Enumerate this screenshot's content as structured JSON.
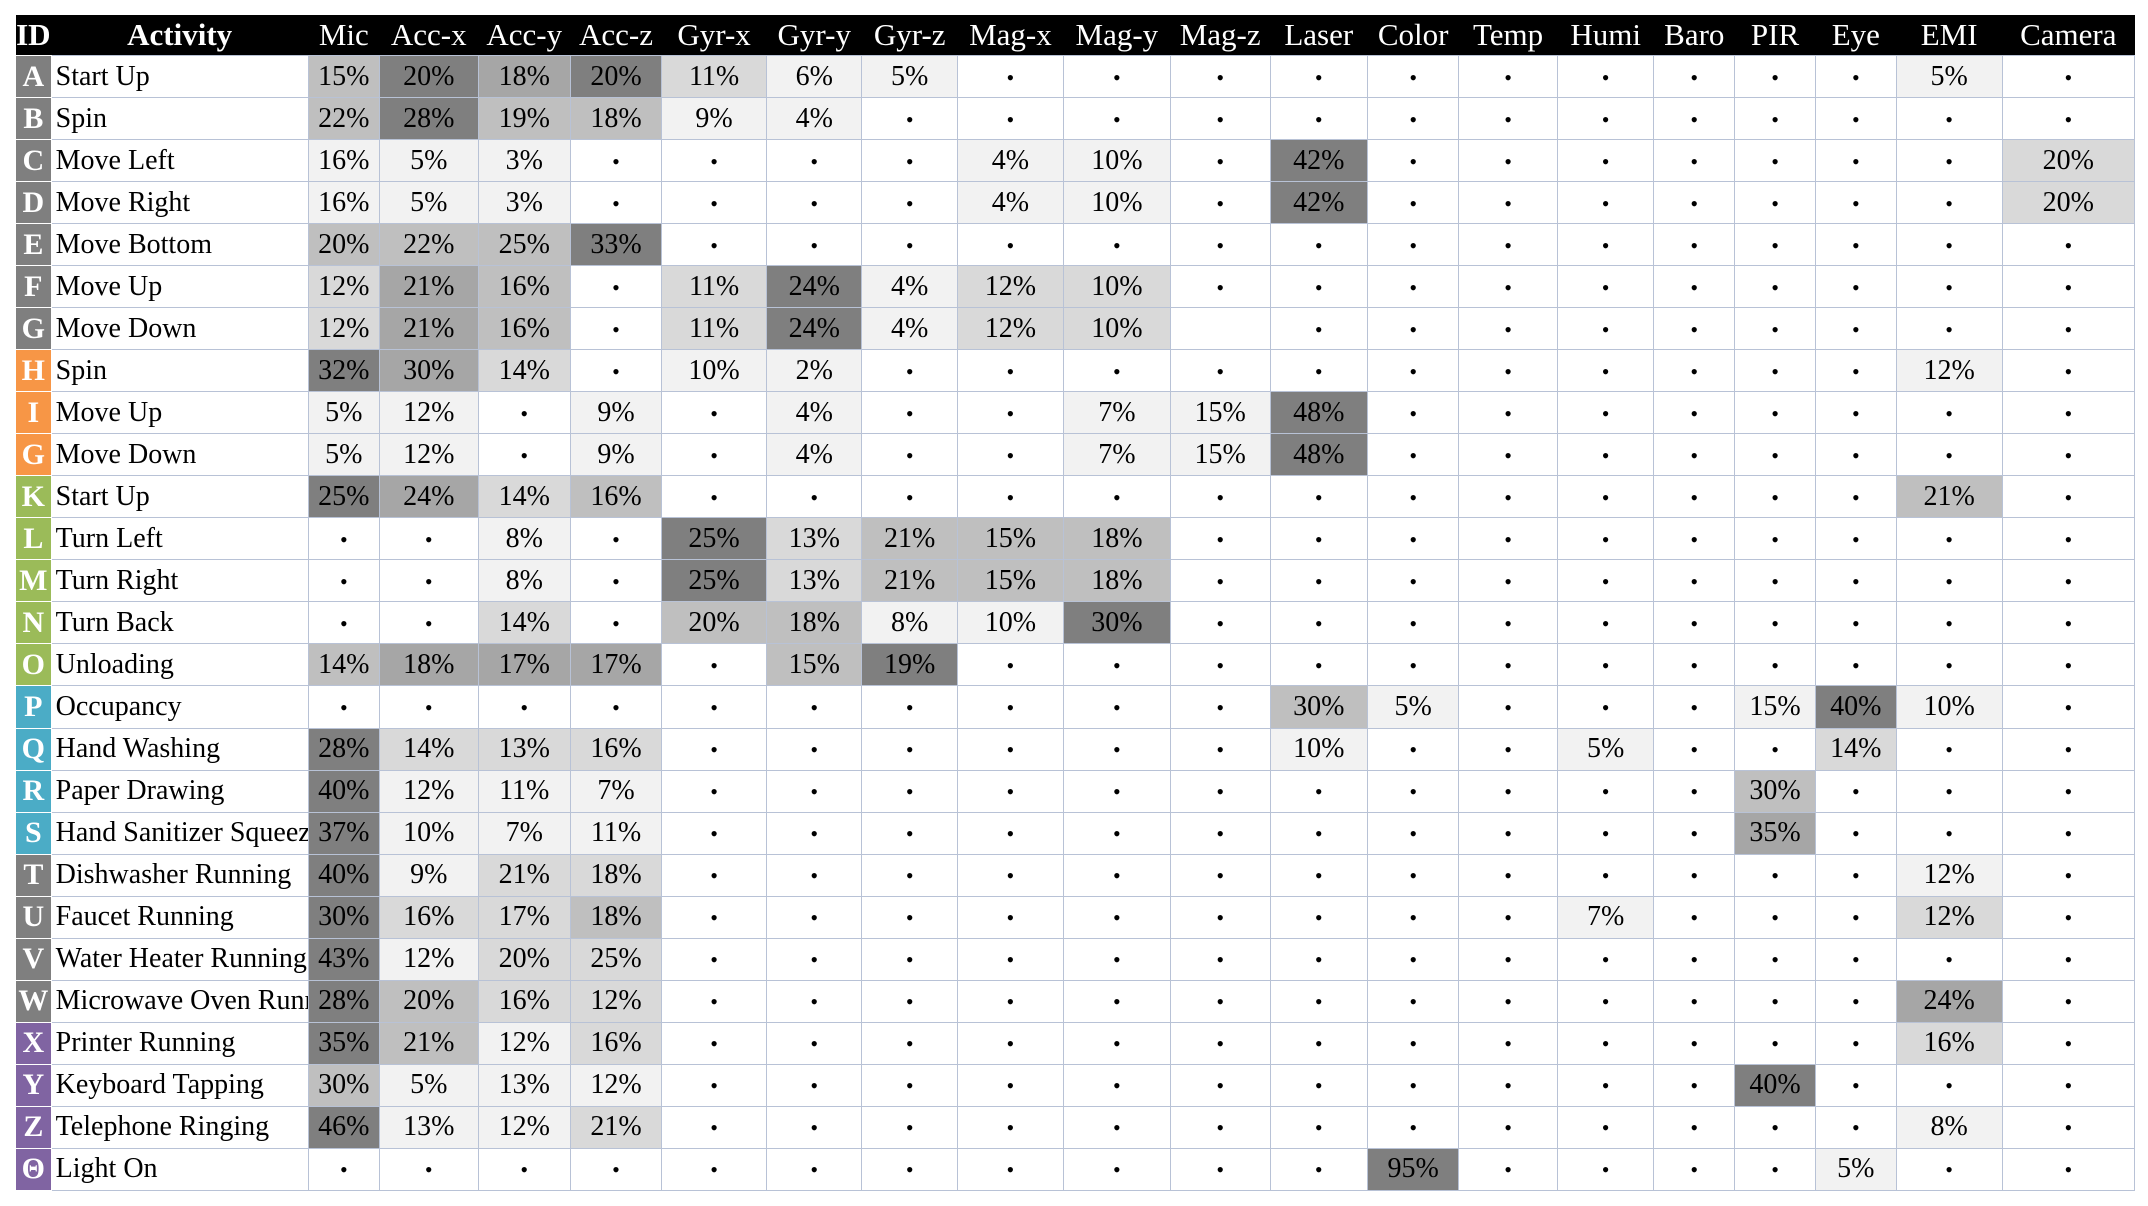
{
  "chart_data": {
    "type": "heatmap",
    "columns": [
      "ID",
      "Activity",
      "Mic",
      "Acc-x",
      "Acc-y",
      "Acc-z",
      "Gyr-x",
      "Gyr-y",
      "Gyr-z",
      "Mag-x",
      "Mag-y",
      "Mag-z",
      "Laser",
      "Color",
      "Temp",
      "Humi",
      "Baro",
      "PIR",
      "Eye",
      "EMI",
      "Camera"
    ],
    "empty_symbol": "•",
    "group_colors": [
      "#7f7f7f",
      "#f79646",
      "#9bbb59",
      "#4bacc6",
      "#7f7f7f",
      "#8064a2"
    ],
    "rows": [
      {
        "id": "A",
        "activity": "Start Up",
        "group": 0,
        "values": [
          15,
          20,
          18,
          20,
          11,
          6,
          5,
          null,
          null,
          null,
          null,
          null,
          null,
          null,
          null,
          null,
          null,
          5,
          null
        ]
      },
      {
        "id": "B",
        "activity": "Spin",
        "group": 0,
        "values": [
          22,
          28,
          19,
          18,
          9,
          4,
          null,
          null,
          null,
          null,
          null,
          null,
          null,
          null,
          null,
          null,
          null,
          null,
          null
        ]
      },
      {
        "id": "C",
        "activity": "Move Left",
        "group": 0,
        "values": [
          16,
          5,
          3,
          null,
          null,
          null,
          null,
          4,
          10,
          null,
          42,
          null,
          null,
          null,
          null,
          null,
          null,
          null,
          20
        ]
      },
      {
        "id": "D",
        "activity": "Move Right",
        "group": 0,
        "values": [
          16,
          5,
          3,
          null,
          null,
          null,
          null,
          4,
          10,
          null,
          42,
          null,
          null,
          null,
          null,
          null,
          null,
          null,
          20
        ]
      },
      {
        "id": "E",
        "activity": "Move Bottom",
        "group": 0,
        "values": [
          20,
          22,
          25,
          33,
          null,
          null,
          null,
          null,
          null,
          null,
          null,
          null,
          null,
          null,
          null,
          null,
          null,
          null,
          null
        ]
      },
      {
        "id": "F",
        "activity": "Move Up",
        "group": 0,
        "values": [
          12,
          21,
          16,
          null,
          11,
          24,
          4,
          12,
          10,
          null,
          null,
          null,
          null,
          null,
          null,
          null,
          null,
          null,
          null
        ]
      },
      {
        "id": "G",
        "activity": "Move Down",
        "group": 0,
        "values": [
          12,
          21,
          16,
          null,
          11,
          24,
          4,
          12,
          10,
          "",
          null,
          null,
          null,
          null,
          null,
          null,
          null,
          null,
          null
        ]
      },
      {
        "id": "H",
        "activity": "Spin",
        "group": 1,
        "values": [
          32,
          30,
          14,
          null,
          10,
          2,
          null,
          null,
          null,
          null,
          null,
          null,
          null,
          null,
          null,
          null,
          null,
          12,
          null
        ]
      },
      {
        "id": "I",
        "activity": "Move Up",
        "group": 1,
        "values": [
          5,
          12,
          null,
          9,
          null,
          4,
          null,
          null,
          7,
          15,
          48,
          null,
          null,
          null,
          null,
          null,
          null,
          null,
          null
        ]
      },
      {
        "id": "G",
        "activity": "Move Down",
        "group": 1,
        "values": [
          5,
          12,
          null,
          9,
          null,
          4,
          null,
          null,
          7,
          15,
          48,
          null,
          null,
          null,
          null,
          null,
          null,
          null,
          null
        ]
      },
      {
        "id": "K",
        "activity": "Start Up",
        "group": 2,
        "values": [
          25,
          24,
          14,
          16,
          null,
          null,
          null,
          null,
          null,
          null,
          null,
          null,
          null,
          null,
          null,
          null,
          null,
          21,
          null
        ]
      },
      {
        "id": "L",
        "activity": "Turn Left",
        "group": 2,
        "values": [
          null,
          null,
          8,
          null,
          25,
          13,
          21,
          15,
          18,
          null,
          null,
          null,
          null,
          null,
          null,
          null,
          null,
          null,
          null
        ]
      },
      {
        "id": "M",
        "activity": "Turn Right",
        "group": 2,
        "values": [
          null,
          null,
          8,
          null,
          25,
          13,
          21,
          15,
          18,
          null,
          null,
          null,
          null,
          null,
          null,
          null,
          null,
          null,
          null
        ]
      },
      {
        "id": "N",
        "activity": "Turn Back",
        "group": 2,
        "values": [
          null,
          null,
          14,
          null,
          20,
          18,
          8,
          10,
          30,
          null,
          null,
          null,
          null,
          null,
          null,
          null,
          null,
          null,
          null
        ]
      },
      {
        "id": "O",
        "activity": "Unloading",
        "group": 2,
        "values": [
          14,
          18,
          17,
          17,
          null,
          15,
          19,
          null,
          null,
          null,
          null,
          null,
          null,
          null,
          null,
          null,
          null,
          null,
          null
        ]
      },
      {
        "id": "P",
        "activity": "Occupancy",
        "group": 3,
        "values": [
          null,
          null,
          null,
          null,
          null,
          null,
          null,
          null,
          null,
          null,
          30,
          5,
          null,
          null,
          null,
          15,
          40,
          10,
          null
        ]
      },
      {
        "id": "Q",
        "activity": "Hand Washing",
        "group": 3,
        "values": [
          28,
          14,
          13,
          16,
          null,
          null,
          null,
          null,
          null,
          null,
          10,
          null,
          null,
          5,
          null,
          null,
          14,
          null,
          null
        ]
      },
      {
        "id": "R",
        "activity": "Paper Drawing",
        "group": 3,
        "values": [
          40,
          12,
          11,
          7,
          null,
          null,
          null,
          null,
          null,
          null,
          null,
          null,
          null,
          null,
          null,
          30,
          null,
          null,
          null
        ]
      },
      {
        "id": "S",
        "activity": "Hand Sanitizer Squeezing",
        "group": 3,
        "values": [
          37,
          10,
          7,
          11,
          null,
          null,
          null,
          null,
          null,
          null,
          null,
          null,
          null,
          null,
          null,
          35,
          null,
          null,
          null
        ]
      },
      {
        "id": "T",
        "activity": "Dishwasher Running",
        "group": 4,
        "values": [
          40,
          9,
          21,
          18,
          null,
          null,
          null,
          null,
          null,
          null,
          null,
          null,
          null,
          null,
          null,
          null,
          null,
          12,
          null
        ]
      },
      {
        "id": "U",
        "activity": "Faucet Running",
        "group": 4,
        "values": [
          30,
          16,
          17,
          18,
          null,
          null,
          null,
          null,
          null,
          null,
          null,
          null,
          null,
          7,
          null,
          null,
          null,
          12,
          null
        ]
      },
      {
        "id": "V",
        "activity": "Water Heater Running",
        "group": 4,
        "values": [
          43,
          12,
          20,
          25,
          null,
          null,
          null,
          null,
          null,
          null,
          null,
          null,
          null,
          null,
          null,
          null,
          null,
          null,
          null
        ]
      },
      {
        "id": "W",
        "activity": "Microwave Oven Running",
        "group": 4,
        "values": [
          28,
          20,
          16,
          12,
          null,
          null,
          null,
          null,
          null,
          null,
          null,
          null,
          null,
          null,
          null,
          null,
          null,
          24,
          null
        ]
      },
      {
        "id": "X",
        "activity": "Printer Running",
        "group": 5,
        "values": [
          35,
          21,
          12,
          16,
          null,
          null,
          null,
          null,
          null,
          null,
          null,
          null,
          null,
          null,
          null,
          null,
          null,
          16,
          null
        ]
      },
      {
        "id": "Y",
        "activity": "Keyboard Tapping",
        "group": 5,
        "values": [
          30,
          5,
          13,
          12,
          null,
          null,
          null,
          null,
          null,
          null,
          null,
          null,
          null,
          null,
          null,
          40,
          null,
          null,
          null
        ]
      },
      {
        "id": "Z",
        "activity": "Telephone Ringing",
        "group": 5,
        "values": [
          46,
          13,
          12,
          21,
          null,
          null,
          null,
          null,
          null,
          null,
          null,
          null,
          null,
          null,
          null,
          null,
          null,
          8,
          null
        ]
      },
      {
        "id": "Θ",
        "activity": "Light On",
        "group": 5,
        "values": [
          null,
          null,
          null,
          null,
          null,
          null,
          null,
          null,
          null,
          null,
          null,
          95,
          null,
          null,
          null,
          null,
          5,
          null,
          null
        ]
      }
    ]
  }
}
